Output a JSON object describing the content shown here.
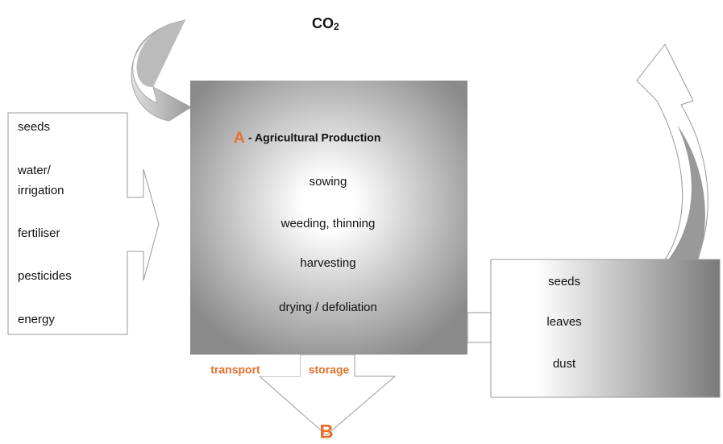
{
  "co2": {
    "main": "CO",
    "sub": "2"
  },
  "process": {
    "letter": "A",
    "title": "- Agricultural Production",
    "steps": [
      "sowing",
      "weeding, thinning",
      "harvesting",
      "drying / defoliation"
    ]
  },
  "inputs": [
    [
      "seeds"
    ],
    [
      "water/",
      "irrigation"
    ],
    [
      "fertiliser"
    ],
    [
      "pesticides"
    ],
    [
      "energy"
    ]
  ],
  "outputs": [
    "seeds",
    "leaves",
    "dust"
  ],
  "bottom": {
    "left": "transport",
    "right": "storage",
    "letter": "B"
  }
}
